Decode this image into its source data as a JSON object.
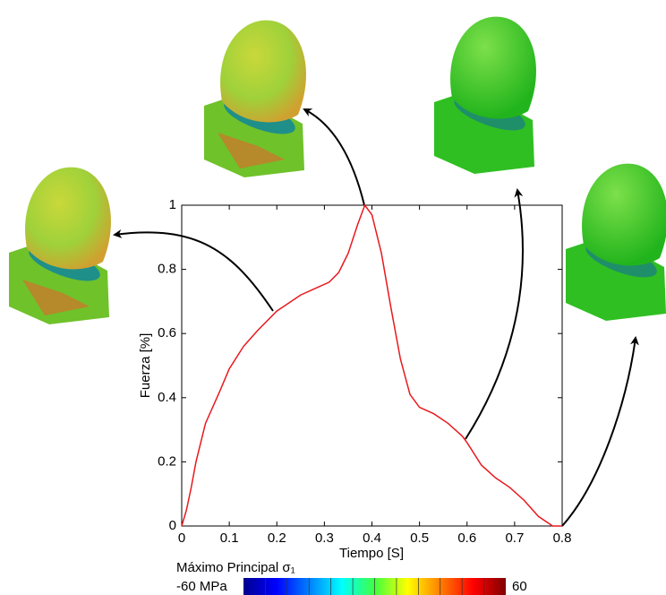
{
  "chart_data": {
    "type": "line",
    "x_label": "Tiempo [S]",
    "y_label": "Fuerza [%]",
    "x": [
      0,
      0.01,
      0.02,
      0.03,
      0.05,
      0.08,
      0.1,
      0.13,
      0.16,
      0.2,
      0.22,
      0.25,
      0.28,
      0.31,
      0.33,
      0.35,
      0.37,
      0.385,
      0.4,
      0.42,
      0.44,
      0.46,
      0.48,
      0.5,
      0.53,
      0.56,
      0.59,
      0.6,
      0.63,
      0.66,
      0.69,
      0.72,
      0.75,
      0.78,
      0.8
    ],
    "series": [
      {
        "color": "#e8191e",
        "values": [
          0,
          0.05,
          0.12,
          0.2,
          0.32,
          0.42,
          0.49,
          0.56,
          0.61,
          0.67,
          0.69,
          0.72,
          0.74,
          0.76,
          0.79,
          0.85,
          0.94,
          1.0,
          0.97,
          0.85,
          0.68,
          0.52,
          0.41,
          0.37,
          0.35,
          0.32,
          0.28,
          0.26,
          0.19,
          0.15,
          0.12,
          0.08,
          0.03,
          0,
          0
        ]
      }
    ],
    "xlim": [
      0,
      0.8
    ],
    "ylim": [
      0,
      1
    ],
    "xticks": [
      0,
      0.1,
      0.2,
      0.3,
      0.4,
      0.5,
      0.6,
      0.7,
      0.8
    ],
    "yticks": [
      0,
      0.2,
      0.4,
      0.6,
      0.8,
      1
    ],
    "colorbar": {
      "label": "Máximo Principal σ₁",
      "min": {
        "value": -60,
        "label": "-60 MPa"
      },
      "max": 60
    }
  }
}
